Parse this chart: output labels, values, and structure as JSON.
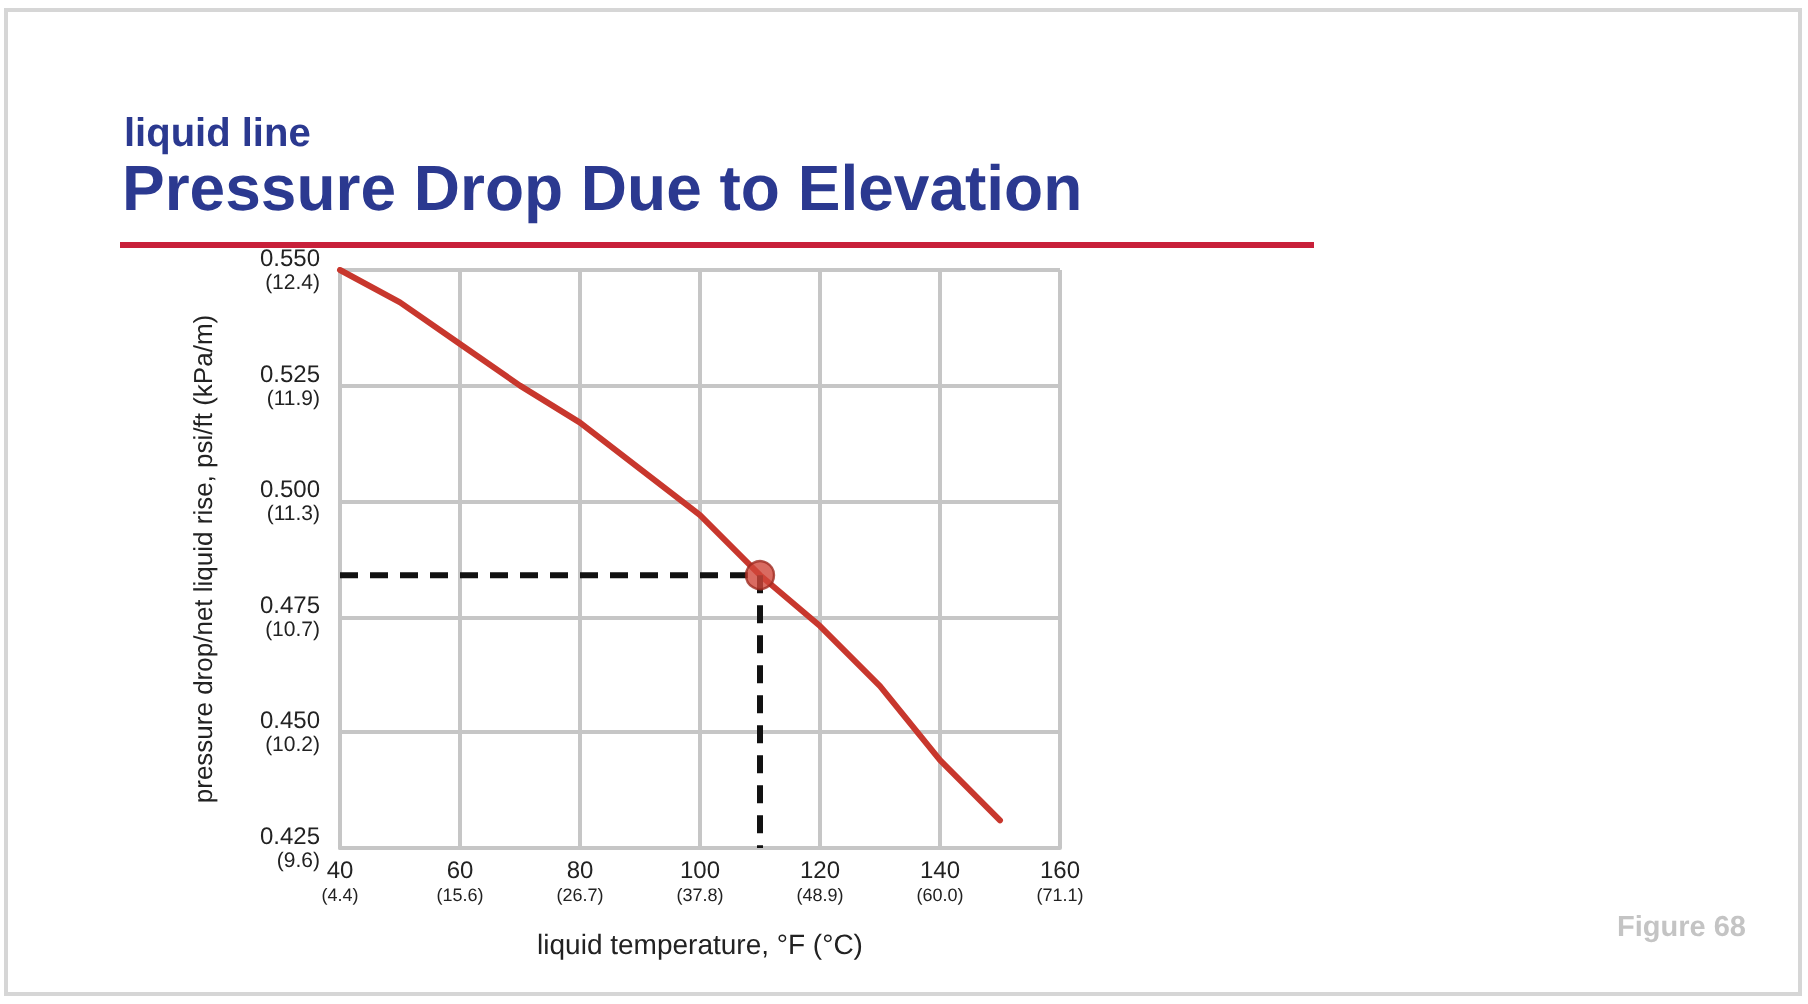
{
  "chart_data": {
    "type": "line",
    "subtitle": "liquid line",
    "title": "Pressure Drop Due to Elevation",
    "xlabel": "liquid temperature, °F (°C)",
    "ylabel": "pressure drop/net liquid rise, psi/ft (kPa/m)",
    "annotations": [
      "Figure 68"
    ],
    "xlim": [
      40,
      160
    ],
    "xticks": [
      40,
      60,
      80,
      100,
      120,
      140,
      160
    ],
    "x2lim": [
      4.444,
      71.111
    ],
    "x2ticks": [
      {
        "value": 4.444,
        "label": "(4.4)"
      },
      {
        "value": 15.556,
        "label": "(15.6)"
      },
      {
        "value": 26.667,
        "label": "(26.7)"
      },
      {
        "value": 37.778,
        "label": "(37.8)"
      },
      {
        "value": 48.889,
        "label": "(48.9)"
      },
      {
        "value": 60,
        "label": "(60.0)"
      },
      {
        "value": 71.111,
        "label": "(71.1)"
      }
    ],
    "ylim": [
      0.425,
      0.55
    ],
    "yticks": [
      0.425,
      {
        "value": 0.45,
        "label": "0.450"
      },
      0.475,
      {
        "value": 0.5,
        "label": "0.500"
      },
      0.525,
      {
        "value": 0.55,
        "label": "0.550"
      }
    ],
    "y2lim": [
      9.614,
      12.441
    ],
    "y2ticks": [
      {
        "value": 9.614,
        "label": "(9.6)"
      },
      {
        "value": 10.179,
        "label": "(10.2)"
      },
      {
        "value": 10.745,
        "label": "(10.7)"
      },
      {
        "value": 11.31,
        "label": "(11.3)"
      },
      {
        "value": 11.876,
        "label": "(11.9)"
      },
      {
        "value": 12.441,
        "label": "(12.4)"
      }
    ],
    "grid": true,
    "marker": "none",
    "line_style": "solid",
    "series": [
      {
        "color": "#c8372d",
        "x": [
          40,
          50,
          60,
          70,
          80,
          90,
          100,
          110,
          120,
          130,
          140,
          150
        ],
        "values": [
          0.55,
          0.543,
          0.534,
          0.525,
          0.517,
          0.507,
          0.497,
          0.484,
          0.473,
          0.46,
          0.444,
          0.431
        ]
      },
      {
        "type": "line",
        "color": "#111111",
        "line_style": "dashed",
        "x": [
          40,
          110,
          110
        ],
        "values": [
          0.484,
          0.484,
          0.425
        ]
      },
      {
        "type": "scatter",
        "color": "#d0463a",
        "marker": "circle",
        "x": [
          110
        ],
        "values": [
          0.484
        ]
      }
    ]
  }
}
